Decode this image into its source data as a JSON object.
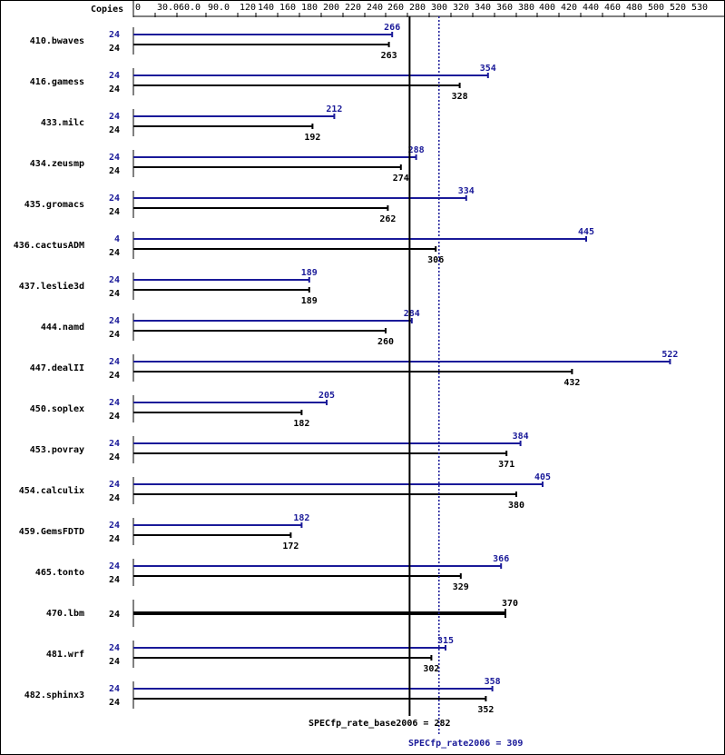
{
  "chart_data": {
    "type": "bar",
    "orientation": "horizontal",
    "header": "Copies",
    "x_ticks": [
      0,
      30.0,
      60.0,
      90.0,
      120,
      140,
      160,
      180,
      200,
      220,
      240,
      260,
      280,
      300,
      320,
      340,
      360,
      380,
      400,
      420,
      440,
      460,
      480,
      500,
      520
    ],
    "x_tick_labels": [
      "0",
      "30.0",
      "60.0",
      "90.0",
      "120",
      "140",
      "160",
      "180",
      "200",
      "220",
      "240",
      "260",
      "280",
      "300",
      "320",
      "340",
      "360",
      "380",
      "400",
      "420",
      "440",
      "460",
      "480",
      "500",
      "520"
    ],
    "xlim": [
      0,
      530
    ],
    "extra_tick_label": "530",
    "colors": {
      "peak": "#1a1a99",
      "base": "#000000",
      "frame": "#000000"
    },
    "benchmarks": [
      {
        "name": "410.bwaves",
        "peak_copies": "24",
        "peak": 266,
        "peak_label": "266",
        "base_copies": "24",
        "base": 263,
        "base_label": "263"
      },
      {
        "name": "416.gamess",
        "peak_copies": "24",
        "peak": 354,
        "peak_label": "354",
        "base_copies": "24",
        "base": 328,
        "base_label": "328"
      },
      {
        "name": "433.milc",
        "peak_copies": "24",
        "peak": 212,
        "peak_label": "212",
        "base_copies": "24",
        "base": 192,
        "base_label": "192"
      },
      {
        "name": "434.zeusmp",
        "peak_copies": "24",
        "peak": 288,
        "peak_label": "288",
        "base_copies": "24",
        "base": 274,
        "base_label": "274"
      },
      {
        "name": "435.gromacs",
        "peak_copies": "24",
        "peak": 334,
        "peak_label": "334",
        "base_copies": "24",
        "base": 262,
        "base_label": "262"
      },
      {
        "name": "436.cactusADM",
        "peak_copies": "4",
        "peak": 445,
        "peak_label": "445",
        "base_copies": "24",
        "base": 306,
        "base_label": "306"
      },
      {
        "name": "437.leslie3d",
        "peak_copies": "24",
        "peak": 189,
        "peak_label": "189",
        "base_copies": "24",
        "base": 189,
        "base_label": "189"
      },
      {
        "name": "444.namd",
        "peak_copies": "24",
        "peak": 284,
        "peak_label": "284",
        "base_copies": "24",
        "base": 260,
        "base_label": "260"
      },
      {
        "name": "447.dealII",
        "peak_copies": "24",
        "peak": 522,
        "peak_label": "522",
        "base_copies": "24",
        "base": 432,
        "base_label": "432"
      },
      {
        "name": "450.soplex",
        "peak_copies": "24",
        "peak": 205,
        "peak_label": "205",
        "base_copies": "24",
        "base": 182,
        "base_label": "182"
      },
      {
        "name": "453.povray",
        "peak_copies": "24",
        "peak": 384,
        "peak_label": "384",
        "base_copies": "24",
        "base": 371,
        "base_label": "371"
      },
      {
        "name": "454.calculix",
        "peak_copies": "24",
        "peak": 405,
        "peak_label": "405",
        "base_copies": "24",
        "base": 380,
        "base_label": "380"
      },
      {
        "name": "459.GemsFDTD",
        "peak_copies": "24",
        "peak": 182,
        "peak_label": "182",
        "base_copies": "24",
        "base": 172,
        "base_label": "172"
      },
      {
        "name": "465.tonto",
        "peak_copies": "24",
        "peak": 366,
        "peak_label": "366",
        "base_copies": "24",
        "base": 329,
        "base_label": "329"
      },
      {
        "name": "470.lbm",
        "peak_copies": "24",
        "peak": 370,
        "peak_label": "370",
        "base_copies": "24",
        "base": 370,
        "base_label": "",
        "combined": true
      },
      {
        "name": "481.wrf",
        "peak_copies": "24",
        "peak": 315,
        "peak_label": "315",
        "base_copies": "24",
        "base": 302,
        "base_label": "302"
      },
      {
        "name": "482.sphinx3",
        "peak_copies": "24",
        "peak": 358,
        "peak_label": "358",
        "base_copies": "24",
        "base": 352,
        "base_label": "352"
      }
    ],
    "reference_lines": {
      "base": {
        "label": "SPECfp_rate_base2006 = 282",
        "value": 282
      },
      "peak": {
        "label": "SPECfp_rate2006 = 309",
        "value": 309
      }
    }
  }
}
